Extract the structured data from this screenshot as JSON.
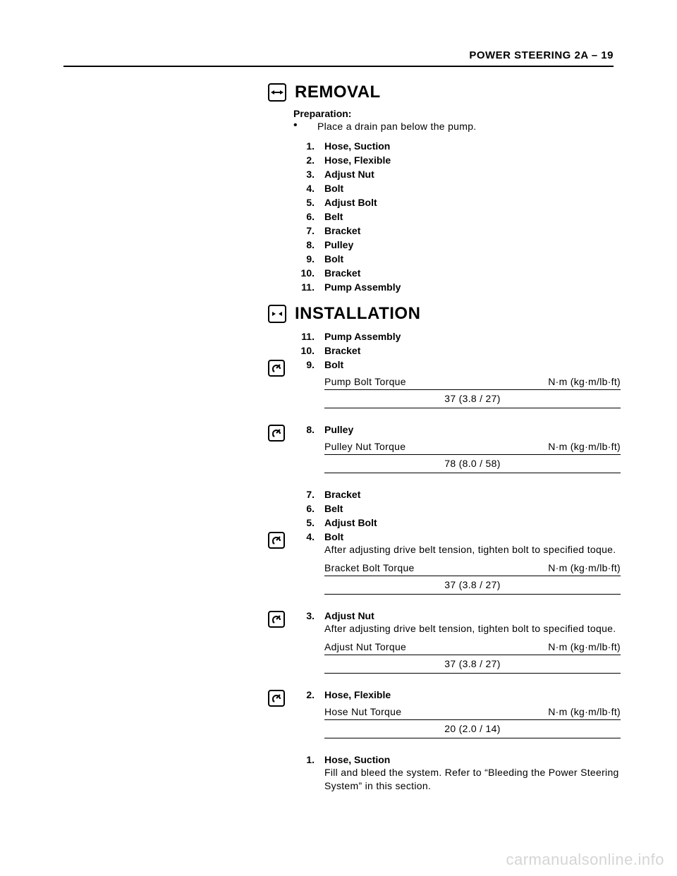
{
  "header": "POWER STEERING  2A – 19",
  "sections": {
    "removal": {
      "title": "REMOVAL",
      "prep_label": "Preparation:",
      "prep_text": "Place a drain pan below the pump.",
      "items": [
        {
          "n": "1.",
          "label": "Hose, Suction"
        },
        {
          "n": "2.",
          "label": "Hose, Flexible"
        },
        {
          "n": "3.",
          "label": "Adjust Nut"
        },
        {
          "n": "4.",
          "label": "Bolt"
        },
        {
          "n": "5.",
          "label": "Adjust Bolt"
        },
        {
          "n": "6.",
          "label": "Belt"
        },
        {
          "n": "7.",
          "label": "Bracket"
        },
        {
          "n": "8.",
          "label": "Pulley"
        },
        {
          "n": "9.",
          "label": "Bolt"
        },
        {
          "n": "10.",
          "label": "Bracket"
        },
        {
          "n": "11.",
          "label": "Pump Assembly"
        }
      ]
    },
    "installation": {
      "title": "INSTALLATION",
      "unit_label": "N·m (kg·m/lb·ft)",
      "items": [
        {
          "n": "11.",
          "label": "Pump Assembly"
        },
        {
          "n": "10.",
          "label": "Bracket"
        },
        {
          "n": "9.",
          "label": "Bolt",
          "torque_icon": true,
          "torque_name": "Pump Bolt Torque",
          "torque_value": "37 (3.8 / 27)"
        },
        {
          "n": "8.",
          "label": "Pulley",
          "torque_icon": true,
          "torque_name": "Pulley Nut Torque",
          "torque_value": "78 (8.0 / 58)"
        },
        {
          "n": "7.",
          "label": "Bracket"
        },
        {
          "n": "6.",
          "label": "Belt"
        },
        {
          "n": "5.",
          "label": "Adjust Bolt"
        },
        {
          "n": "4.",
          "label": "Bolt",
          "torque_icon": true,
          "note": "After adjusting drive belt tension, tighten bolt to specified toque.",
          "torque_name": "Bracket Bolt Torque",
          "torque_value": "37 (3.8 / 27)"
        },
        {
          "n": "3.",
          "label": "Adjust Nut",
          "torque_icon": true,
          "note": "After adjusting drive belt tension, tighten bolt to specified toque.",
          "torque_name": "Adjust Nut Torque",
          "torque_value": "37 (3.8 / 27)"
        },
        {
          "n": "2.",
          "label": "Hose, Flexible",
          "torque_icon": true,
          "torque_name": "Hose Nut Torque",
          "torque_value": "20 (2.0 / 14)"
        },
        {
          "n": "1.",
          "label": "Hose, Suction",
          "note": "Fill and bleed the system. Refer to “Bleeding the Power Steering System” in this section."
        }
      ]
    }
  },
  "watermark": "carmanualsonline.info"
}
